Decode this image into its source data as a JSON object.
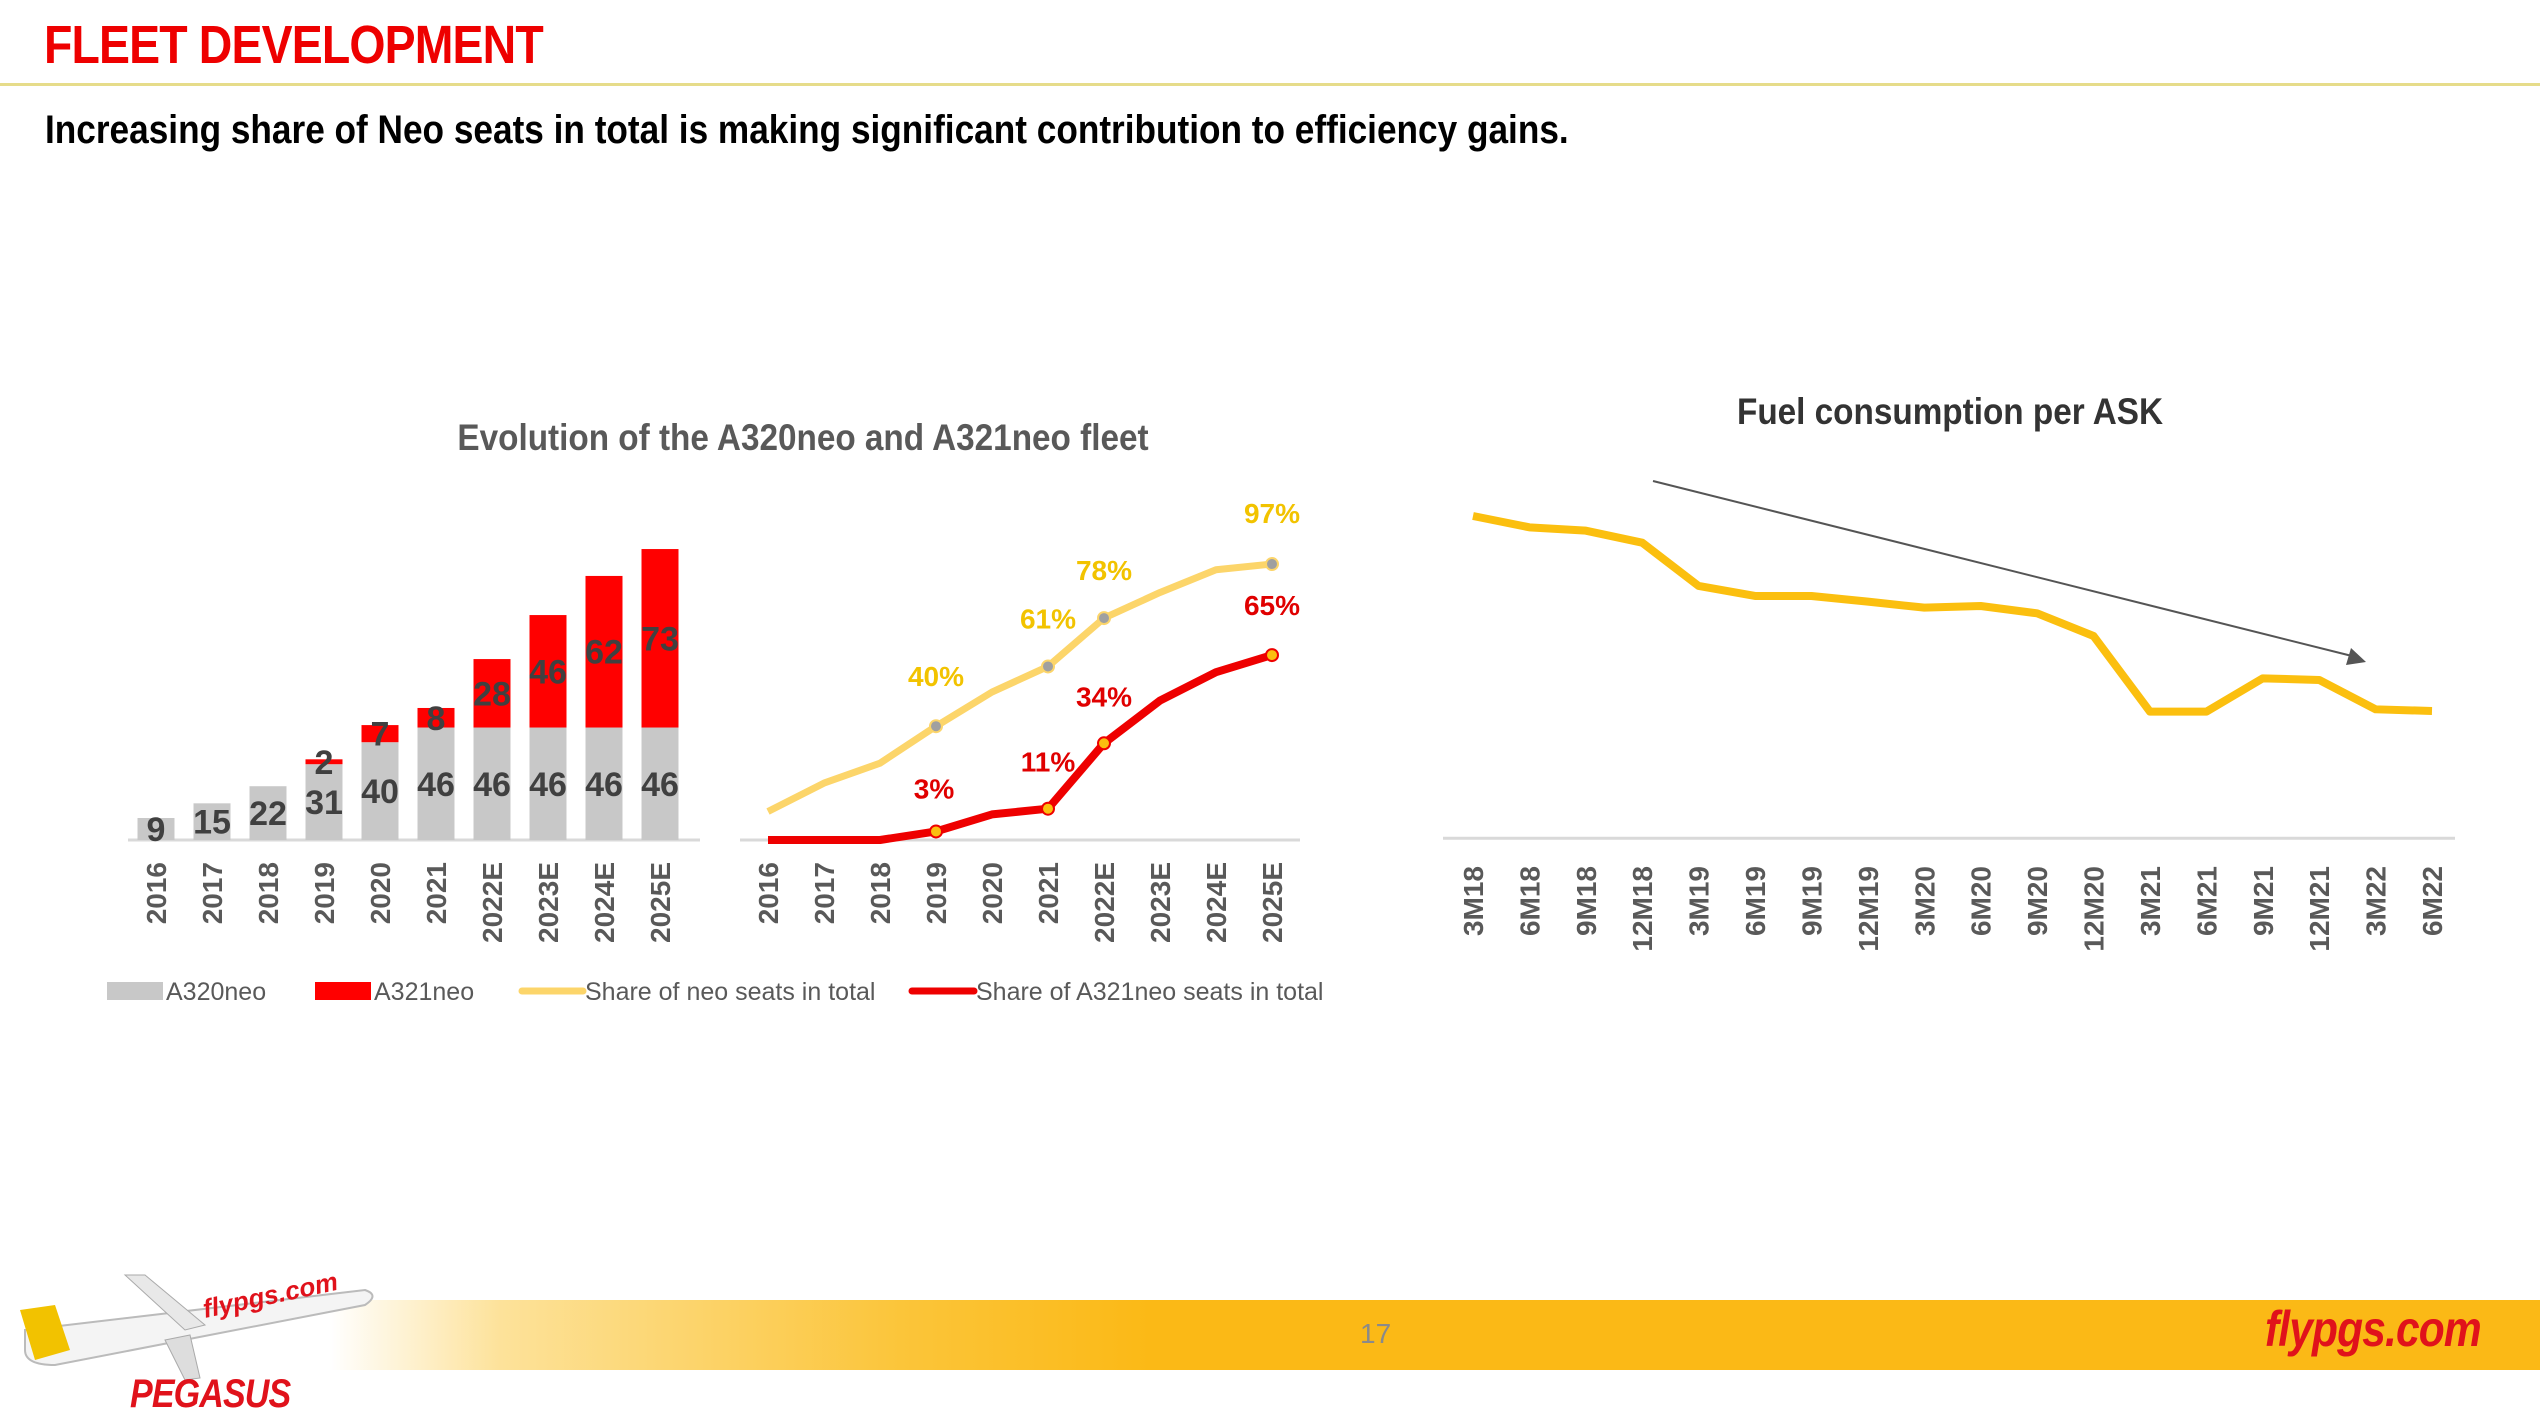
{
  "header": {
    "title": "FLEET DEVELOPMENT",
    "subtitle": "Increasing share of Neo seats in total is making significant contribution to efficiency gains."
  },
  "footer": {
    "page_number": "17",
    "url": "flypgs.com",
    "brand": "PEGASUS",
    "plane_livery_text": "flypgs.com",
    "accent_color": "#fbb916"
  },
  "colors": {
    "a320neo": "#c8c8c8",
    "a321neo": "#ff0000",
    "neo_share_line": "#fcd56a",
    "a321_share_line": "#ee0000",
    "fuel_line": "#fbbf0f",
    "label_text": "#404040"
  },
  "chart_data": [
    {
      "type": "bar",
      "stacked": true,
      "title": "Evolution of the A320neo and A321neo fleet",
      "categories": [
        "2016",
        "2017",
        "2018",
        "2019",
        "2020",
        "2021",
        "2022E",
        "2023E",
        "2024E",
        "2025E"
      ],
      "series": [
        {
          "name": "A320neo",
          "values": [
            9,
            15,
            22,
            31,
            40,
            46,
            46,
            46,
            46,
            46
          ]
        },
        {
          "name": "A321neo",
          "values": [
            0,
            0,
            0,
            2,
            7,
            8,
            28,
            46,
            62,
            73
          ]
        }
      ],
      "data_labels": true,
      "legend": "bottom",
      "grid": false
    },
    {
      "type": "line",
      "title": "",
      "categories": [
        "2016",
        "2017",
        "2018",
        "2019",
        "2020",
        "2021",
        "2022E",
        "2023E",
        "2024E",
        "2025E"
      ],
      "series": [
        {
          "name": "Share of neo seats in total",
          "values": [
            10,
            20,
            27,
            40,
            52,
            61,
            78,
            87,
            95,
            97
          ],
          "labels": {
            "2019": "40%",
            "2021": "61%",
            "2022E": "78%",
            "2025E": "97%"
          }
        },
        {
          "name": "Share of A321neo seats in total",
          "values": [
            0,
            0,
            0,
            3,
            9,
            11,
            34,
            49,
            59,
            65
          ],
          "labels": {
            "2019": "3%",
            "2021": "11%",
            "2022E": "34%",
            "2025E": "65%"
          }
        }
      ],
      "ylim": [
        0,
        100
      ],
      "legend": "bottom",
      "grid": false
    },
    {
      "type": "line",
      "title": "Fuel consumption  per ASK",
      "categories": [
        "3M18",
        "6M18",
        "9M18",
        "12M18",
        "3M19",
        "6M19",
        "9M19",
        "12M19",
        "3M20",
        "6M20",
        "9M20",
        "12M20",
        "3M21",
        "6M21",
        "9M21",
        "12M21",
        "3M22",
        "6M22"
      ],
      "series": [
        {
          "values": [
            96.7,
            93.3,
            92.3,
            88.7,
            75.7,
            72.7,
            72.7,
            71.0,
            69.2,
            69.7,
            67.5,
            60.7,
            38.0,
            38.0,
            48.0,
            47.5,
            38.7,
            38.2
          ]
        }
      ],
      "y_axis_shown": false,
      "annotation": "downward trend arrow",
      "grid": false
    }
  ]
}
